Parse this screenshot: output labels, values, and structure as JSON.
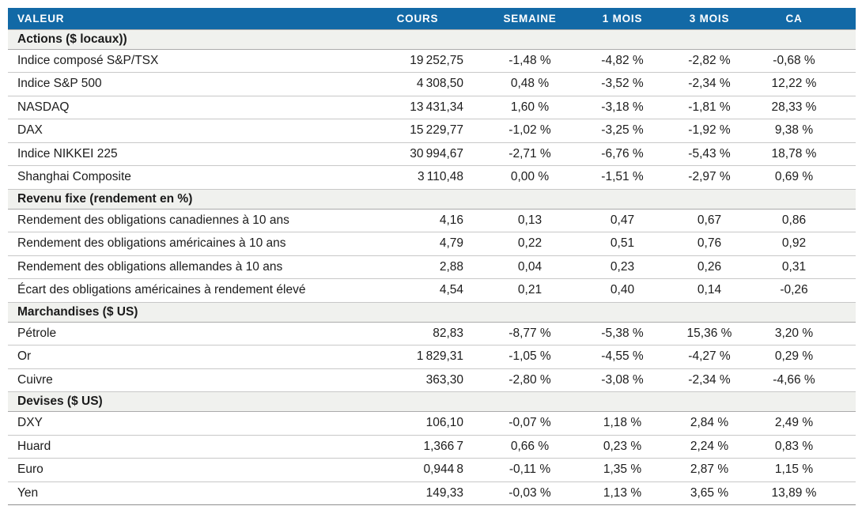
{
  "colors": {
    "header_bg": "#1269a6",
    "section_bg": "#f0f1ee",
    "negative_text": "#e0201d",
    "positive_text": "#00a357",
    "neutral_text": "#1c1c1c"
  },
  "table": {
    "columns": [
      {
        "key": "valeur",
        "label": "VALEUR"
      },
      {
        "key": "cours",
        "label": "COURS"
      },
      {
        "key": "semaine",
        "label": "SEMAINE"
      },
      {
        "key": "mois1",
        "label": "1 MOIS"
      },
      {
        "key": "mois3",
        "label": "3 MOIS"
      },
      {
        "key": "ca",
        "label": "CA"
      }
    ],
    "sections": [
      {
        "label": "Actions ($ locaux))",
        "rows": [
          {
            "label": "Indice composé S&P/TSX",
            "cells": [
              {
                "t": "19 252,75",
                "c": "k"
              },
              {
                "t": "-1,48 %",
                "c": "r"
              },
              {
                "t": "-4,82 %",
                "c": "r"
              },
              {
                "t": "-2,82 %",
                "c": "r"
              },
              {
                "t": "-0,68 %",
                "c": "r"
              }
            ]
          },
          {
            "label": "Indice S&P 500",
            "cells": [
              {
                "t": "4 308,50",
                "c": "k"
              },
              {
                "t": "0,48 %",
                "c": "g"
              },
              {
                "t": "-3,52 %",
                "c": "r"
              },
              {
                "t": "-2,34 %",
                "c": "r"
              },
              {
                "t": "12,22 %",
                "c": "g"
              }
            ]
          },
          {
            "label": "NASDAQ",
            "cells": [
              {
                "t": "13 431,34",
                "c": "k"
              },
              {
                "t": "1,60 %",
                "c": "g"
              },
              {
                "t": "-3,18 %",
                "c": "r"
              },
              {
                "t": "-1,81 %",
                "c": "r"
              },
              {
                "t": "28,33 %",
                "c": "g"
              }
            ]
          },
          {
            "label": "DAX",
            "cells": [
              {
                "t": "15 229,77",
                "c": "k"
              },
              {
                "t": "-1,02 %",
                "c": "r"
              },
              {
                "t": "-3,25 %",
                "c": "r"
              },
              {
                "t": "-1,92 %",
                "c": "r"
              },
              {
                "t": "9,38 %",
                "c": "g"
              }
            ]
          },
          {
            "label": "Indice NIKKEI 225",
            "cells": [
              {
                "t": "30 994,67",
                "c": "k"
              },
              {
                "t": "-2,71 %",
                "c": "r"
              },
              {
                "t": "-6,76 %",
                "c": "r"
              },
              {
                "t": "-5,43 %",
                "c": "r"
              },
              {
                "t": "18,78 %",
                "c": "g"
              }
            ]
          },
          {
            "label": "Shanghai Composite",
            "cells": [
              {
                "t": "3 110,48",
                "c": "k"
              },
              {
                "t": "0,00 %",
                "c": "k"
              },
              {
                "t": "-1,51 %",
                "c": "r"
              },
              {
                "t": "-2,97 %",
                "c": "r"
              },
              {
                "t": "0,69 %",
                "c": "g"
              }
            ]
          }
        ]
      },
      {
        "label": "Revenu fixe (rendement en %)",
        "rows": [
          {
            "label": "Rendement des obligations canadiennes à 10 ans",
            "cells": [
              {
                "t": "4,16",
                "c": "k"
              },
              {
                "t": "0,13",
                "c": "r"
              },
              {
                "t": "0,47",
                "c": "r"
              },
              {
                "t": "0,67",
                "c": "r"
              },
              {
                "t": "0,86",
                "c": "r"
              }
            ]
          },
          {
            "label": "Rendement des obligations américaines à 10 ans",
            "cells": [
              {
                "t": "4,79",
                "c": "k"
              },
              {
                "t": "0,22",
                "c": "r"
              },
              {
                "t": "0,51",
                "c": "r"
              },
              {
                "t": "0,76",
                "c": "r"
              },
              {
                "t": "0,92",
                "c": "r"
              }
            ]
          },
          {
            "label": "Rendement des obligations allemandes à 10 ans",
            "cells": [
              {
                "t": "2,88",
                "c": "k"
              },
              {
                "t": "0,04",
                "c": "r"
              },
              {
                "t": "0,23",
                "c": "r"
              },
              {
                "t": "0,26",
                "c": "r"
              },
              {
                "t": "0,31",
                "c": "r"
              }
            ]
          },
          {
            "label": "Écart des obligations américaines à rendement élevé",
            "cells": [
              {
                "t": "4,54",
                "c": "k"
              },
              {
                "t": "0,21",
                "c": "r"
              },
              {
                "t": "0,40",
                "c": "r"
              },
              {
                "t": "0,14",
                "c": "r"
              },
              {
                "t": "-0,26",
                "c": "g"
              }
            ]
          }
        ]
      },
      {
        "label": "Marchandises ($ US)",
        "rows": [
          {
            "label": "Pétrole",
            "cells": [
              {
                "t": "82,83",
                "c": "k"
              },
              {
                "t": "-8,77 %",
                "c": "r"
              },
              {
                "t": "-5,38 %",
                "c": "r"
              },
              {
                "t": "15,36 %",
                "c": "g"
              },
              {
                "t": "3,20 %",
                "c": "g"
              }
            ]
          },
          {
            "label": "Or",
            "cells": [
              {
                "t": "1 829,31",
                "c": "k"
              },
              {
                "t": "-1,05 %",
                "c": "r"
              },
              {
                "t": "-4,55 %",
                "c": "r"
              },
              {
                "t": "-4,27 %",
                "c": "r"
              },
              {
                "t": "0,29 %",
                "c": "g"
              }
            ]
          },
          {
            "label": "Cuivre",
            "cells": [
              {
                "t": "363,30",
                "c": "k"
              },
              {
                "t": "-2,80 %",
                "c": "r"
              },
              {
                "t": "-3,08 %",
                "c": "r"
              },
              {
                "t": "-2,34 %",
                "c": "r"
              },
              {
                "t": "-4,66 %",
                "c": "r"
              }
            ]
          }
        ]
      },
      {
        "label": "Devises ($ US)",
        "rows": [
          {
            "label": "DXY",
            "cells": [
              {
                "t": "106,10",
                "c": "k"
              },
              {
                "t": "-0,07 %",
                "c": "r"
              },
              {
                "t": "1,18 %",
                "c": "g"
              },
              {
                "t": "2,84 %",
                "c": "g"
              },
              {
                "t": "2,49 %",
                "c": "g"
              }
            ]
          },
          {
            "label": "Huard",
            "cells": [
              {
                "t": "1,366 7",
                "c": "k"
              },
              {
                "t": "0,66 %",
                "c": "g"
              },
              {
                "t": "0,23 %",
                "c": "g"
              },
              {
                "t": "2,24 %",
                "c": "g"
              },
              {
                "t": "0,83 %",
                "c": "g"
              }
            ]
          },
          {
            "label": "Euro",
            "cells": [
              {
                "t": "0,944 8",
                "c": "k"
              },
              {
                "t": "-0,11 %",
                "c": "r"
              },
              {
                "t": "1,35 %",
                "c": "g"
              },
              {
                "t": "2,87 %",
                "c": "g"
              },
              {
                "t": "1,15 %",
                "c": "g"
              }
            ]
          },
          {
            "label": "Yen",
            "cells": [
              {
                "t": "149,33",
                "c": "k"
              },
              {
                "t": "-0,03 %",
                "c": "r"
              },
              {
                "t": "1,13 %",
                "c": "g"
              },
              {
                "t": "3,65 %",
                "c": "g"
              },
              {
                "t": "13,89 %",
                "c": "g"
              }
            ]
          }
        ]
      }
    ]
  }
}
